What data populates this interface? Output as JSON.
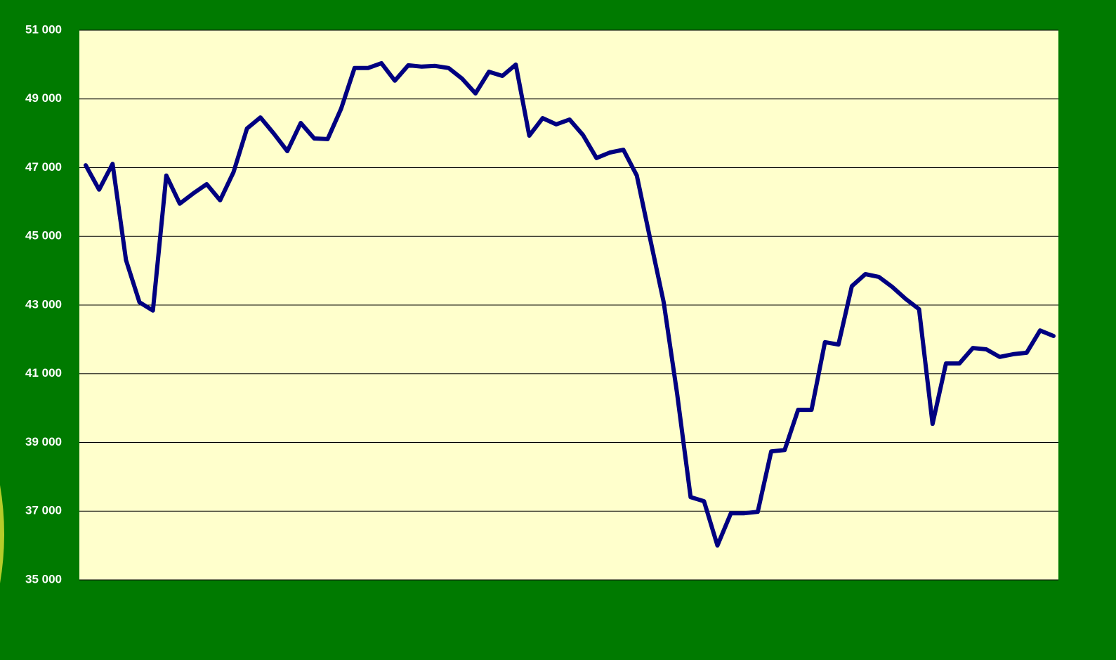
{
  "chart_data": {
    "type": "line",
    "categories": [
      null,
      null,
      null,
      null,
      null,
      null,
      null,
      null,
      null,
      null,
      null,
      null,
      null,
      null,
      null,
      null,
      null,
      null,
      null,
      null,
      null,
      null,
      null,
      null,
      null,
      null,
      null,
      null,
      null,
      null,
      null,
      null,
      null,
      null,
      null,
      null,
      null,
      null,
      null,
      null,
      null,
      null,
      null,
      null,
      null,
      null,
      null,
      null,
      null,
      null,
      null,
      null,
      null,
      null,
      null,
      null,
      null,
      null,
      null,
      null,
      null,
      null,
      null,
      null,
      null,
      null,
      null,
      null,
      null,
      null,
      null,
      null,
      null
    ],
    "series": [
      {
        "color": "#000080",
        "values": [
          47070,
          46360,
          47110,
          44310,
          43080,
          42840,
          46770,
          45950,
          46250,
          46520,
          46050,
          46870,
          48140,
          48460,
          47990,
          47480,
          48300,
          47850,
          47830,
          48710,
          49900,
          49900,
          50040,
          49530,
          49980,
          49940,
          49960,
          49900,
          49590,
          49160,
          49790,
          49670,
          50000,
          47930,
          48440,
          48260,
          48400,
          47950,
          47280,
          47440,
          47520,
          46770,
          44920,
          43080,
          40420,
          37410,
          37290,
          36000,
          36940,
          36940,
          36980,
          38740,
          38780,
          39950,
          39950,
          41920,
          41850,
          43550,
          43900,
          43820,
          43530,
          43180,
          42880,
          39540,
          41300,
          41300,
          41750,
          41710,
          41490,
          41570,
          41610,
          42260,
          42100
        ]
      }
    ],
    "ylim": [
      35000,
      51000
    ],
    "yticks": [
      {
        "value": 35000,
        "label": "35 000"
      },
      {
        "value": 37000,
        "label": "37 000"
      },
      {
        "value": 39000,
        "label": "39 000"
      },
      {
        "value": 41000,
        "label": "41 000"
      },
      {
        "value": 43000,
        "label": "43 000"
      },
      {
        "value": 45000,
        "label": "45 000"
      },
      {
        "value": 47000,
        "label": "47 000"
      },
      {
        "value": 49000,
        "label": "49 000"
      },
      {
        "value": 51000,
        "label": "51 000"
      }
    ],
    "grid": true
  }
}
